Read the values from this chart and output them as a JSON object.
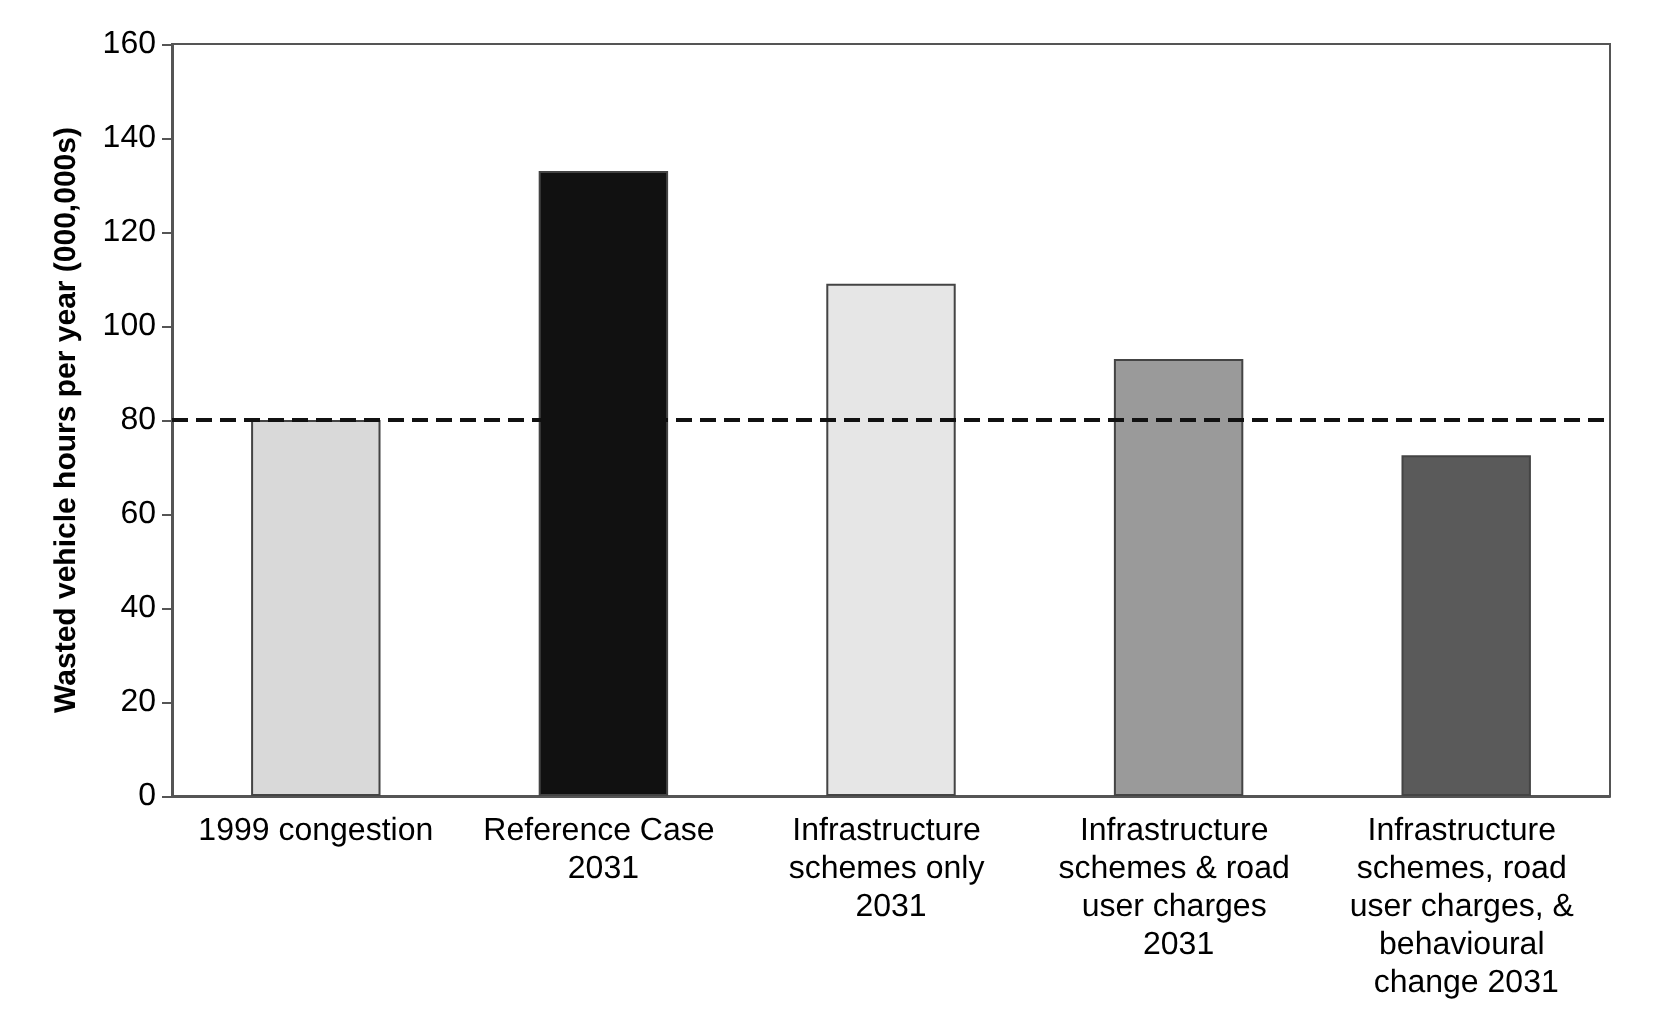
{
  "chart_data": {
    "type": "bar",
    "ylabel": "Wasted vehicle hours per year (000,000s)",
    "categories": [
      "1999 congestion",
      "Reference Case 2031",
      "Infrastructure schemes only 2031",
      "Infrastructure schemes & road user charges 2031",
      "Infrastructure schemes, road user charges, & behavioural change 2031"
    ],
    "values": [
      80,
      133,
      109,
      93,
      72.5
    ],
    "colors": [
      "#d9d9d9",
      "#111111",
      "#e6e6e6",
      "#9a9a9a",
      "#5a5a5a"
    ],
    "ylim": [
      0,
      160
    ],
    "yticks": [
      0,
      20,
      40,
      60,
      80,
      100,
      120,
      140,
      160
    ],
    "grid": false,
    "ref_lines": [
      {
        "axis": "y",
        "value": 80,
        "color": "#111111",
        "line_style": "dashed"
      }
    ]
  }
}
